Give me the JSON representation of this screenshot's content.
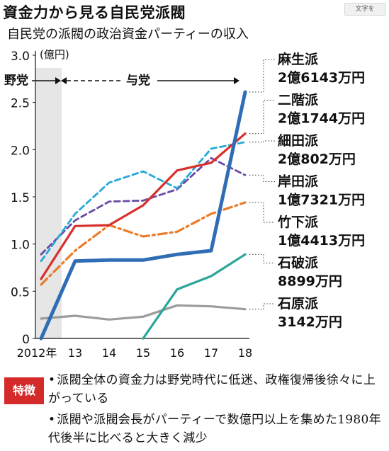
{
  "header": {
    "title": "資金力から見る自民党派閥",
    "subtitle": "自民党の派閥の政治資金パーティーの収入",
    "text_size_button": "文字を"
  },
  "chart_data": {
    "type": "line",
    "unit_label": "(億円)",
    "x": [
      "2012年",
      "13",
      "14",
      "15",
      "16",
      "17",
      "18"
    ],
    "ylim": [
      0,
      3.0
    ],
    "yticks": [
      "0",
      "0.5",
      "1.0",
      "1.5",
      "2.0",
      "2.5",
      "3.0"
    ],
    "periods": [
      {
        "label": "野党",
        "shaded": true
      },
      {
        "label": "与党",
        "shaded": false
      }
    ],
    "grid": false,
    "series": [
      {
        "name": "麻生派",
        "amount": "2億6143万円",
        "color": "#2f6db5",
        "style": "solid-thick",
        "values": [
          0,
          0.82,
          0.83,
          0.83,
          0.89,
          0.93,
          2.61
        ]
      },
      {
        "name": "二階派",
        "amount": "2億1744万円",
        "color": "#d7302c",
        "style": "solid",
        "values": [
          0.63,
          1.19,
          1.2,
          1.41,
          1.78,
          1.86,
          2.17
        ]
      },
      {
        "name": "細田派",
        "amount": "2億802万円",
        "color": "#27a9d8",
        "style": "dashed",
        "values": [
          0.82,
          1.32,
          1.65,
          1.77,
          1.59,
          2.01,
          2.08
        ]
      },
      {
        "name": "岸田派",
        "amount": "1億7321万円",
        "color": "#6a4aa3",
        "style": "dashed",
        "values": [
          0.89,
          1.25,
          1.45,
          1.46,
          1.58,
          1.91,
          1.73
        ]
      },
      {
        "name": "竹下派",
        "amount": "1億4413万円",
        "color": "#ea7b28",
        "style": "dash-dot",
        "values": [
          0.57,
          0.93,
          1.2,
          1.08,
          1.13,
          1.32,
          1.44
        ]
      },
      {
        "name": "石破派",
        "amount": "8899万円",
        "color": "#2aa59a",
        "style": "solid",
        "values": [
          null,
          null,
          null,
          0,
          0.52,
          0.66,
          0.89
        ]
      },
      {
        "name": "石原派",
        "amount": "3142万円",
        "color": "#9c9c9c",
        "style": "solid",
        "values": [
          0.21,
          0.24,
          0.2,
          0.23,
          0.35,
          0.34,
          0.31
        ]
      }
    ]
  },
  "features": {
    "badge": "特徴",
    "items": [
      "派閥全体の資金力は野党時代に低迷、政権復帰後徐々に上がっている",
      "派閥や派閥会長がパーティーで数億円以上を集めた1980年代後半に比べると大きく減少"
    ]
  }
}
